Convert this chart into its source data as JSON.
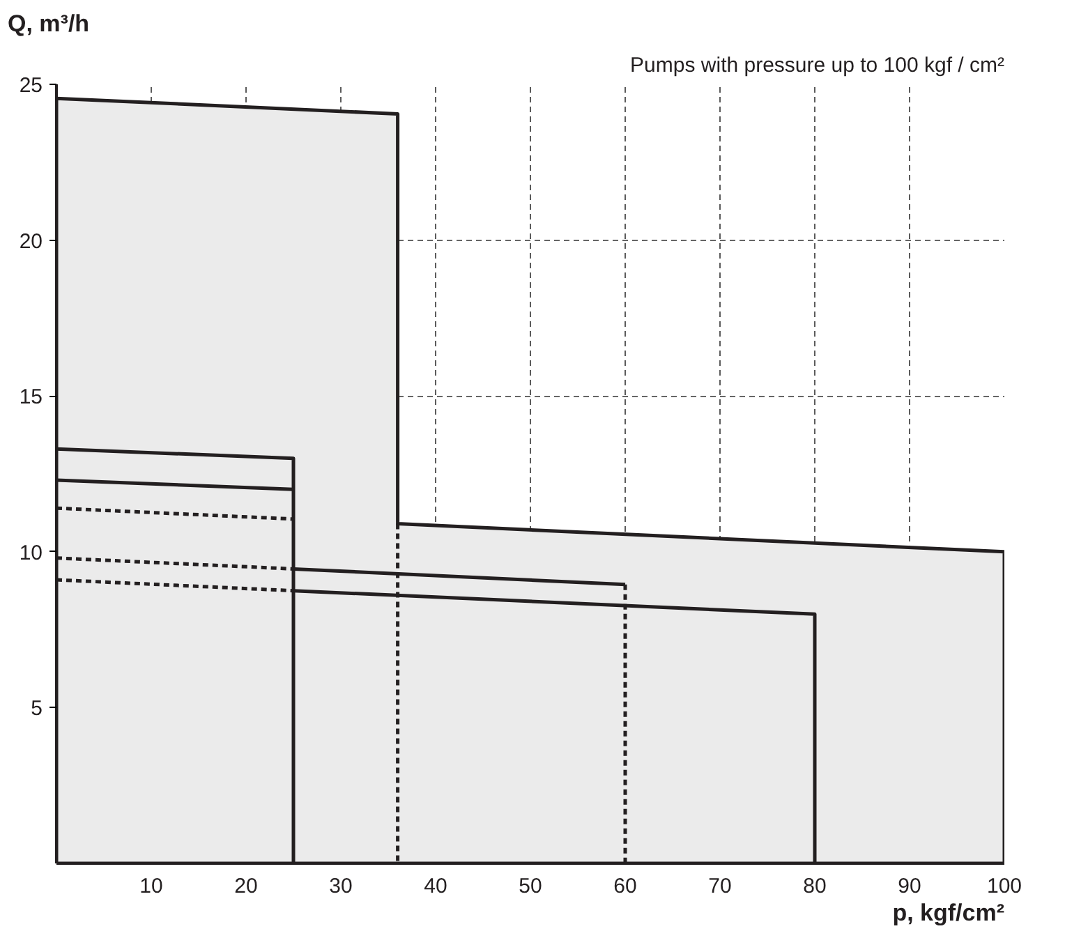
{
  "chart_data": {
    "type": "line",
    "title": "Pumps with pressure up to 100 kgf / cm²",
    "xlabel": "p, kgf/cm²",
    "ylabel": "Q, m³/h",
    "xlim": [
      0,
      100
    ],
    "ylim": [
      0,
      25
    ],
    "xticks": [
      10,
      20,
      30,
      40,
      50,
      60,
      70,
      80,
      90,
      100
    ],
    "yticks": [
      5,
      10,
      15,
      20,
      25
    ],
    "grid": true,
    "series": [
      {
        "type": "area",
        "color": "#ebebeb",
        "x": [
          0,
          0,
          36,
          36,
          100,
          100
        ],
        "values": [
          0,
          24.55,
          24.05,
          10.9,
          10.0,
          0
        ]
      },
      {
        "color": "#231f20",
        "line_style": "solid",
        "x": [
          0,
          25,
          25
        ],
        "values": [
          13.3,
          13.0,
          0
        ]
      },
      {
        "color": "#231f20",
        "line_style": "solid",
        "x": [
          0,
          25
        ],
        "values": [
          12.3,
          12.0
        ]
      },
      {
        "color": "#231f20",
        "line_style": "dashed",
        "x": [
          0,
          25
        ],
        "values": [
          11.4,
          11.05
        ]
      },
      {
        "color": "#231f20",
        "line_style": "dashed",
        "x": [
          36,
          36
        ],
        "values": [
          10.9,
          0
        ]
      },
      {
        "color": "#231f20",
        "line_style": "dashed",
        "x": [
          0,
          25
        ],
        "values": [
          9.8,
          9.45
        ]
      },
      {
        "color": "#231f20",
        "line_style": "solid",
        "x": [
          25,
          60
        ],
        "values": [
          9.45,
          8.95
        ]
      },
      {
        "color": "#231f20",
        "line_style": "dashed",
        "x": [
          60,
          60
        ],
        "values": [
          8.95,
          0
        ]
      },
      {
        "color": "#231f20",
        "line_style": "dashed",
        "x": [
          0,
          25
        ],
        "values": [
          9.1,
          8.75
        ]
      },
      {
        "color": "#231f20",
        "line_style": "solid",
        "x": [
          25,
          80,
          80
        ],
        "values": [
          8.75,
          8.0,
          0
        ]
      }
    ]
  }
}
